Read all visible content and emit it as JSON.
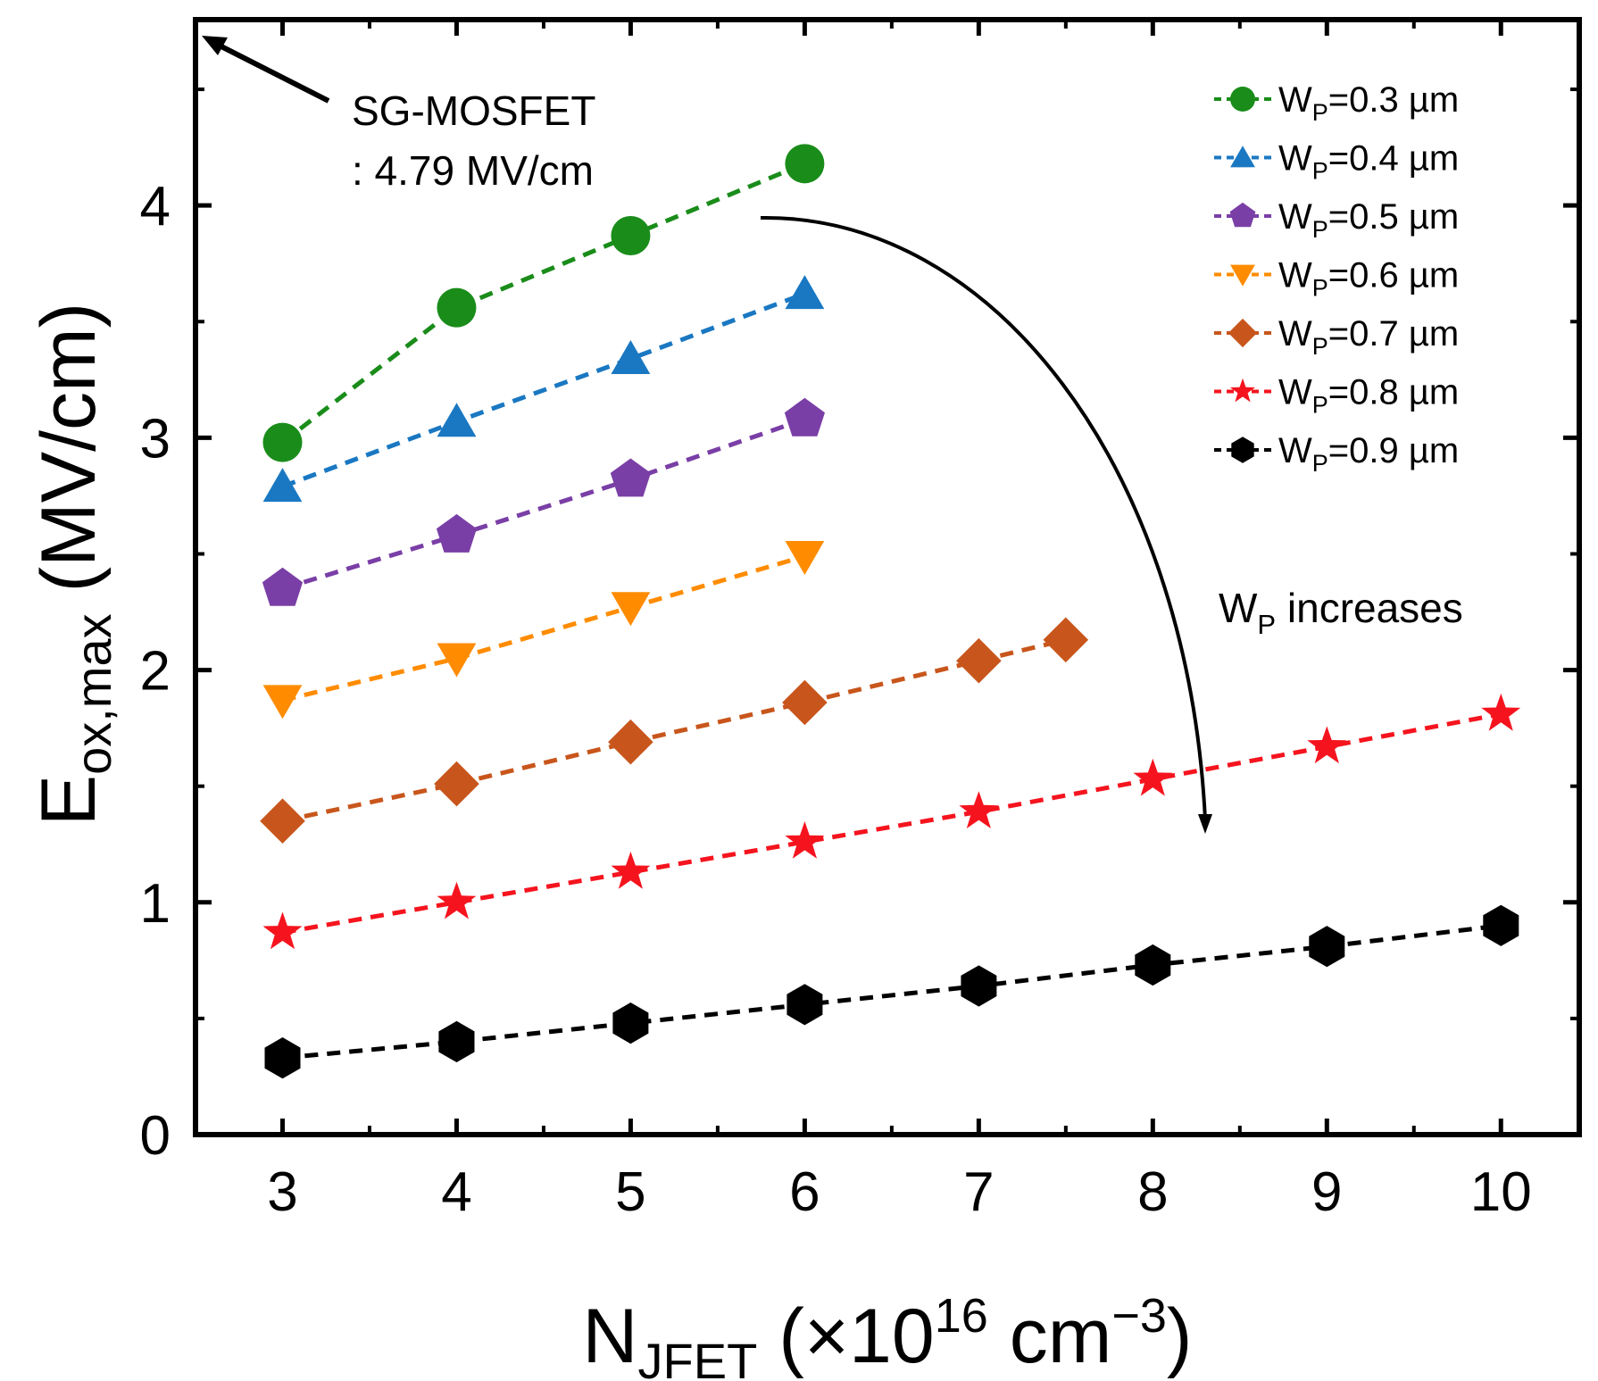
{
  "chart_data": {
    "type": "line",
    "xlabel": {
      "main": "N",
      "sub": "JFET",
      "rest": " (×10",
      "sup1": "16",
      "unit": " cm",
      "sup2": "−3",
      "close": ")"
    },
    "ylabel": {
      "main": "E",
      "sub": "ox,max",
      "rest": " (MV/cm)"
    },
    "xlim": [
      2.5,
      10.45
    ],
    "ylim": [
      0,
      4.8
    ],
    "xticks": [
      3,
      4,
      5,
      6,
      7,
      8,
      9,
      10
    ],
    "yticks": [
      0,
      1,
      2,
      3,
      4
    ],
    "grid": false,
    "legend_position": "top-right",
    "series": [
      {
        "name": "WP=0.3 µm",
        "label_main": "W",
        "label_sub": "P",
        "label_rest": "=0.3 µm",
        "color": "#1a8c1a",
        "marker": "circle",
        "x": [
          3,
          4,
          5,
          6
        ],
        "y": [
          2.98,
          3.56,
          3.87,
          4.18
        ]
      },
      {
        "name": "WP=0.4 µm",
        "label_main": "W",
        "label_sub": "P",
        "label_rest": "=0.4 µm",
        "color": "#1a78c2",
        "marker": "triangle-up",
        "x": [
          3,
          4,
          5,
          6
        ],
        "y": [
          2.79,
          3.07,
          3.34,
          3.62
        ]
      },
      {
        "name": "WP=0.5 µm",
        "label_main": "W",
        "label_sub": "P",
        "label_rest": "=0.5 µm",
        "color": "#7a3fa6",
        "marker": "pentagon",
        "x": [
          3,
          4,
          5,
          6
        ],
        "y": [
          2.35,
          2.58,
          2.82,
          3.08
        ]
      },
      {
        "name": "WP=0.6 µm",
        "label_main": "W",
        "label_sub": "P",
        "label_rest": "=0.6 µm",
        "color": "#ff8c00",
        "marker": "triangle-down",
        "x": [
          3,
          4,
          5,
          6
        ],
        "y": [
          1.87,
          2.05,
          2.27,
          2.49
        ]
      },
      {
        "name": "WP=0.7 µm",
        "label_main": "W",
        "label_sub": "P",
        "label_rest": "=0.7 µm",
        "color": "#c8561c",
        "marker": "diamond",
        "x": [
          3,
          4,
          5,
          6,
          7,
          7.5
        ],
        "y": [
          1.35,
          1.51,
          1.69,
          1.86,
          2.04,
          2.13
        ]
      },
      {
        "name": "WP=0.8 µm",
        "label_main": "W",
        "label_sub": "P",
        "label_rest": "=0.8 µm",
        "color": "#f5141e",
        "marker": "star",
        "x": [
          3,
          4,
          5,
          6,
          7,
          8,
          9,
          10
        ],
        "y": [
          0.87,
          1.0,
          1.13,
          1.26,
          1.39,
          1.53,
          1.67,
          1.81
        ]
      },
      {
        "name": "WP=0.9 µm",
        "label_main": "W",
        "label_sub": "P",
        "label_rest": "=0.9 µm",
        "color": "#000000",
        "marker": "hexagon",
        "x": [
          3,
          4,
          5,
          6,
          7,
          8,
          9,
          10
        ],
        "y": [
          0.33,
          0.4,
          0.48,
          0.56,
          0.64,
          0.73,
          0.81,
          0.9
        ]
      }
    ],
    "annotations": {
      "sg_mosfet": {
        "line1": "SG-MOSFET",
        "line2": ": 4.79 MV/cm",
        "value": 4.79
      },
      "trend": {
        "main": "W",
        "sub": "P",
        "rest": " increases"
      }
    }
  }
}
